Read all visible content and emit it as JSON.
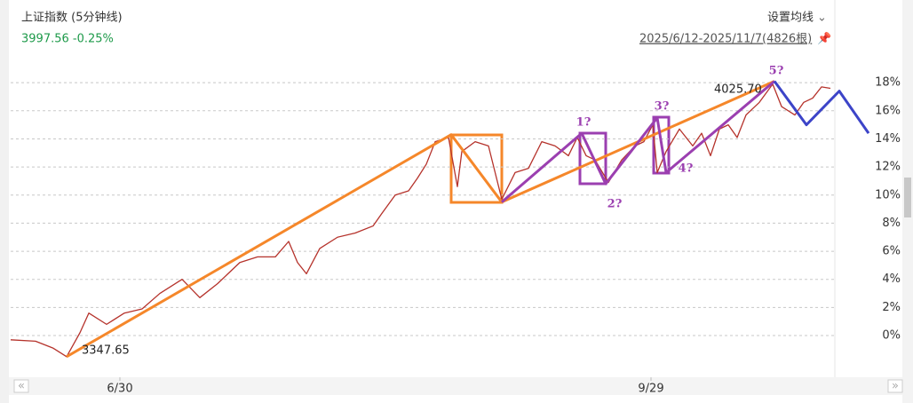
{
  "chart_data": {
    "type": "line",
    "title": "上证指数 (5分钟线)",
    "subtitle": "3997.56 -0.25%",
    "menu": "设置均线",
    "range_label": "2025/6/12-2025/11/7(4826根)",
    "low_label": "3347.65",
    "high_label": "4025.70",
    "wave_labels": [
      "1?",
      "2?",
      "3?",
      "4?",
      "5?"
    ],
    "xlim": [
      0,
      1000
    ],
    "ylim": [
      -2.6,
      20.2
    ],
    "xticks": [
      {
        "value": 123,
        "label": "6/30"
      },
      {
        "value": 721,
        "label": "9/29"
      }
    ],
    "yticks": [
      {
        "value": 0,
        "label": "0%"
      },
      {
        "value": 2,
        "label": "2%"
      },
      {
        "value": 4,
        "label": "4%"
      },
      {
        "value": 6,
        "label": "6%"
      },
      {
        "value": 8,
        "label": "8%"
      },
      {
        "value": 10,
        "label": "10%"
      },
      {
        "value": 12,
        "label": "12%"
      },
      {
        "value": 14,
        "label": "14%"
      },
      {
        "value": 16,
        "label": "16%"
      },
      {
        "value": 18,
        "label": "18%"
      }
    ],
    "grid": true,
    "series": [
      {
        "color": "#b5322b",
        "width": 1.3,
        "x": [
          0,
          28,
          48,
          63,
          78,
          88,
          108,
          128,
          148,
          168,
          193,
          213,
          233,
          258,
          278,
          298,
          313,
          323,
          333,
          348,
          368,
          388,
          408,
          418,
          433,
          448,
          458,
          468,
          478,
          493,
          503,
          508,
          523,
          538,
          553,
          568,
          583,
          598,
          613,
          628,
          638,
          648,
          658,
          673,
          688,
          703,
          713,
          723,
          728,
          738,
          753,
          768,
          778,
          788,
          798,
          808,
          818,
          828,
          843,
          858,
          868,
          883,
          893,
          903,
          913,
          923
        ],
        "values": [
          -0.3,
          -0.4,
          -0.9,
          -1.5,
          0.2,
          1.6,
          0.8,
          1.6,
          1.9,
          3.0,
          4.0,
          2.7,
          3.7,
          5.2,
          5.6,
          5.6,
          6.7,
          5.2,
          4.4,
          6.2,
          7.0,
          7.3,
          7.8,
          8.7,
          10.0,
          10.3,
          11.2,
          12.2,
          13.8,
          14.1,
          10.6,
          13.1,
          13.8,
          13.5,
          9.7,
          11.6,
          11.9,
          13.8,
          13.5,
          12.8,
          14.1,
          12.8,
          12.5,
          10.9,
          12.5,
          13.5,
          13.8,
          15.0,
          11.6,
          13.1,
          14.7,
          13.5,
          14.4,
          12.8,
          14.7,
          15.0,
          14.1,
          15.7,
          16.6,
          17.9,
          16.3,
          15.7,
          16.6,
          16.9,
          17.7,
          17.6
        ]
      },
      {
        "color": "#f5872a",
        "width": 3,
        "x": [
          63,
          496,
          553,
          860
        ],
        "values": [
          -1.5,
          14.3,
          9.5,
          18.1
        ]
      },
      {
        "color": "#9b3fb0",
        "width": 3,
        "x": [
          553,
          643,
          670,
          728,
          738,
          860
        ],
        "values": [
          9.5,
          14.4,
          10.8,
          15.5,
          11.6,
          18.1
        ]
      },
      {
        "color": "#3c44c8",
        "width": 3,
        "x": [
          860,
          896,
          933,
          966
        ],
        "values": [
          18.1,
          15.0,
          17.4,
          14.4
        ]
      }
    ]
  }
}
